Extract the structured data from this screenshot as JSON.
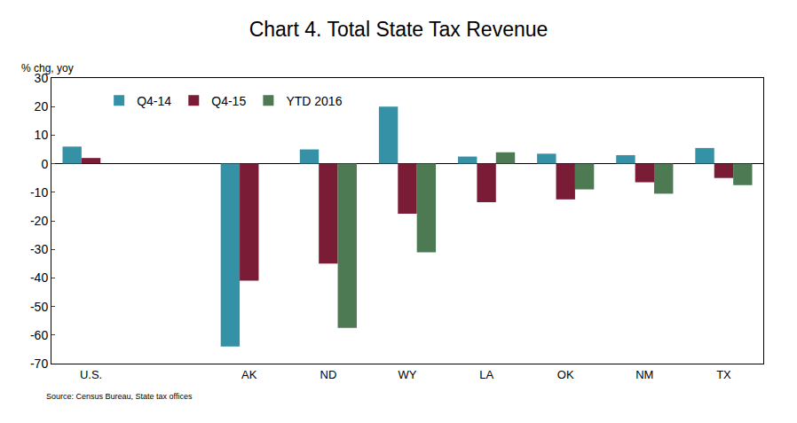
{
  "chart_data": {
    "type": "bar",
    "title": "Chart 4. Total State Tax Revenue",
    "y_label": "% chg, yoy",
    "note": "Source: Census Bureau, State tax offices",
    "categories": [
      "U.S.",
      null,
      "AK",
      "ND",
      "WY",
      "LA",
      "OK",
      "NM",
      "TX"
    ],
    "series": [
      {
        "name": "Q4-14",
        "color": "#3591a6",
        "values": [
          6,
          null,
          -64,
          5,
          20,
          2.5,
          3.5,
          3,
          5.5
        ]
      },
      {
        "name": "Q4-15",
        "color": "#7a1c36",
        "values": [
          2,
          null,
          -41,
          -35,
          -17.5,
          -13.5,
          -12.5,
          -6.5,
          -5
        ]
      },
      {
        "name": "YTD 2016",
        "color": "#4d7a52",
        "values": [
          null,
          null,
          null,
          -57.5,
          -31,
          4,
          -9,
          -10.5,
          -7.5
        ]
      }
    ],
    "ylim": [
      -70,
      30
    ],
    "yticks": [
      -70,
      -60,
      -50,
      -40,
      -30,
      -20,
      -10,
      0,
      10,
      20,
      30
    ],
    "grid": false,
    "legend": "top left"
  }
}
